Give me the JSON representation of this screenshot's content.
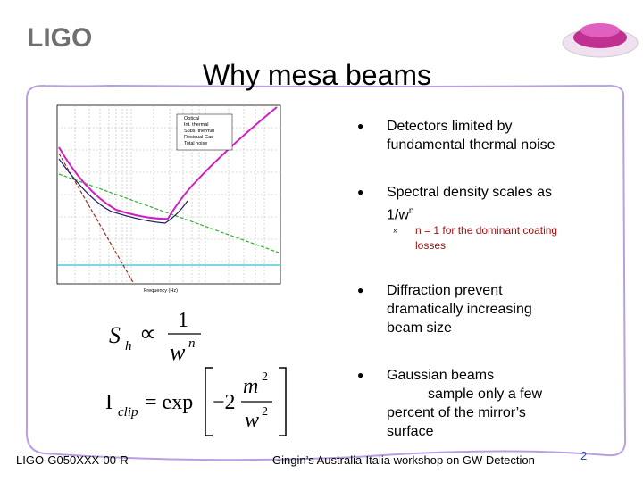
{
  "header": {
    "logo": "LIGO",
    "title": "Why mesa beams"
  },
  "plot": {
    "legend": [
      "Optical",
      "Int. thermal",
      "Subs. thermal",
      "Residual Gas",
      "Total noise"
    ],
    "xlabel": "Frequency (Hz)"
  },
  "bullets": [
    {
      "lines": [
        "Detectors limited by",
        "fundamental thermal noise"
      ]
    },
    {
      "lines": [
        "Spectral density scales as",
        "1/w"
      ],
      "sup": "n",
      "sub": [
        "n = 1 for the dominant coating",
        "losses"
      ]
    },
    {
      "lines": [
        "Diffraction prevent",
        "dramatically increasing",
        "beam size"
      ]
    },
    {
      "lines": [
        "Gaussian beams",
        "sample only a few",
        "percent of the mirror’s",
        "surface"
      ]
    }
  ],
  "equations": [
    {
      "lhs": "S",
      "lhs_sub": "h",
      "op": "∝",
      "num": "1",
      "den": "w",
      "den_sup": "n"
    },
    {
      "lhs": "I",
      "lhs_sub": "clip",
      "op": "= exp",
      "coef": "−2",
      "num": "m",
      "num_sup": "2",
      "den": "w",
      "den_sup": "2"
    }
  ],
  "footer": {
    "left": "LIGO-G050XXX-00-R",
    "center": "Gingin’s Australia-Italia workshop on GW Detection",
    "page": "2"
  }
}
